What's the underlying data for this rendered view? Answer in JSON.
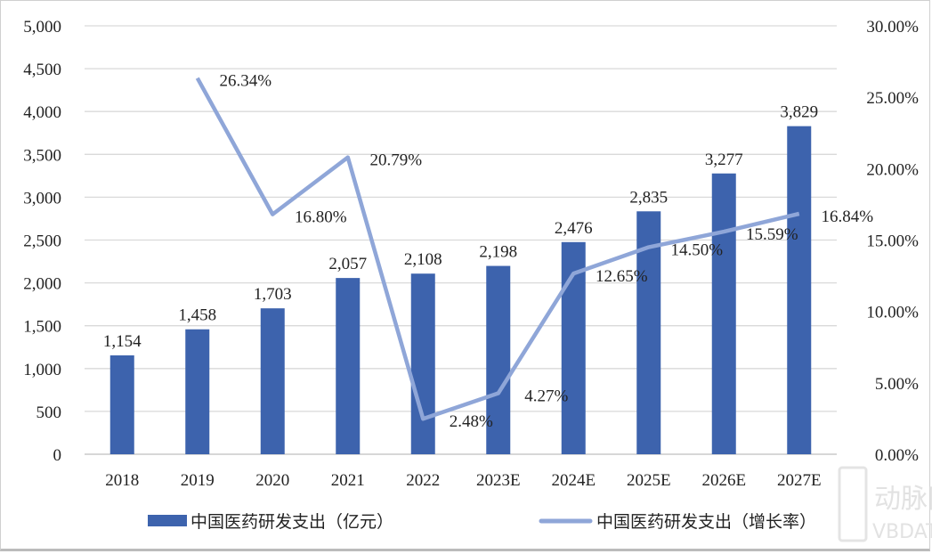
{
  "chart_data": {
    "type": "bar",
    "categories": [
      "2018",
      "2019",
      "2020",
      "2021",
      "2022",
      "2023E",
      "2024E",
      "2025E",
      "2026E",
      "2027E"
    ],
    "series": [
      {
        "name": "中国医药研发支出（亿元）",
        "type": "bar",
        "axis": "left",
        "color": "#3d63ad",
        "values": [
          1154,
          1458,
          1703,
          2057,
          2108,
          2198,
          2476,
          2835,
          3277,
          3829
        ],
        "labels": [
          "1,154",
          "1,458",
          "1,703",
          "2,057",
          "2,108",
          "2,198",
          "2,476",
          "2,835",
          "3,277",
          "3,829"
        ]
      },
      {
        "name": "中国医药研发支出（增长率）",
        "type": "line",
        "axis": "right",
        "color": "#8fa6d8",
        "values": [
          null,
          26.34,
          16.8,
          20.79,
          2.48,
          4.27,
          12.65,
          14.5,
          15.59,
          16.84
        ],
        "labels": [
          "",
          "26.34%",
          "16.80%",
          "20.79%",
          "2.48%",
          "4.27%",
          "12.65%",
          "14.50%",
          "15.59%",
          "16.84%"
        ]
      }
    ],
    "y_left": {
      "range": [
        0,
        5000
      ],
      "ticks": [
        "0",
        "500",
        "1,000",
        "1,500",
        "2,000",
        "2,500",
        "3,000",
        "3,500",
        "4,000",
        "4,500",
        "5,000"
      ]
    },
    "y_right": {
      "range": [
        0,
        30
      ],
      "ticks": [
        "0.00%",
        "5.00%",
        "10.00%",
        "15.00%",
        "20.00%",
        "25.00%",
        "30.00%"
      ]
    },
    "grid": true,
    "legend": "bottom"
  },
  "watermark": {
    "logo": "VB",
    "cn": "动脉网",
    "en": "VBDATA.CN"
  }
}
